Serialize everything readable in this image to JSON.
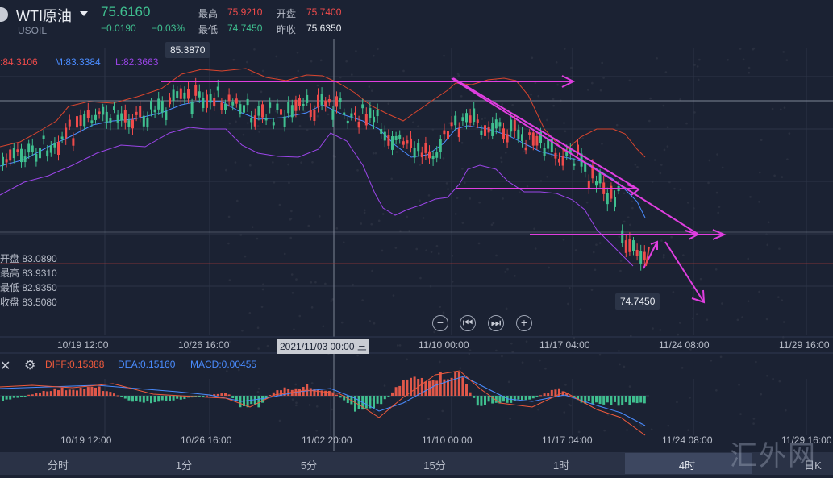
{
  "header": {
    "symbol_name": "WTI原油",
    "symbol_code": "USOIL",
    "last_price": "75.6160",
    "change": "−0.0190",
    "change_pct": "−0.03%",
    "high_label": "最高",
    "high_value": "75.9210",
    "open_label": "开盘",
    "open_value": "75.7400",
    "low_label": "最低",
    "low_value": "74.7450",
    "prev_close_label": "昨收",
    "prev_close_value": "75.6350"
  },
  "boll": {
    "upper": ":84.3106",
    "mid": "M:83.3384",
    "lower": "L:82.3663"
  },
  "ohlc_readout": {
    "open": "开盘 83.0890",
    "high": "最高 83.9310",
    "low": "最低 82.9350",
    "close": "收盘 83.5080"
  },
  "tooltips": {
    "max_price": "85.3870",
    "min_price": "74.7450"
  },
  "main_axis": {
    "labels": [
      "10/19 12:00",
      "10/26 16:00",
      "11/10 00:00",
      "11/17 04:00",
      "11/24 08:00",
      "11/29 16:00"
    ],
    "crosshair": "2021/11/03 00:00 三"
  },
  "macd": {
    "diff": "DIFF:0.15388",
    "dea": "DEA:0.15160",
    "macd": "MACD:0.00455"
  },
  "macd_axis": {
    "labels": [
      "10/19 12:00",
      "10/26 16:00",
      "11/02 20:00",
      "11/10 00:00",
      "11/17 04:00",
      "11/24 08:00",
      "11/29 16:00"
    ]
  },
  "timeframes": [
    "分时",
    "1分",
    "5分",
    "15分",
    "1时",
    "4时",
    "日K"
  ],
  "active_timeframe": "4时",
  "watermark": "汇外网",
  "colors": {
    "up": "#ef4b4b",
    "down": "#3fbf8f",
    "trendline": "#e03ee0",
    "mid": "#4a8cff",
    "lower": "#9b45e8",
    "upper": "#d8452e"
  }
}
